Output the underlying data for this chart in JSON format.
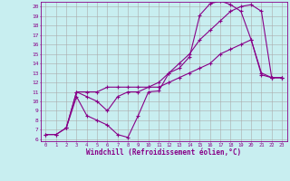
{
  "background_color": "#c8eef0",
  "grid_color": "#aaaaaa",
  "line_color": "#880088",
  "xlabel": "Windchill (Refroidissement éolien,°C)",
  "xlim": [
    -0.5,
    23.5
  ],
  "ylim": [
    5.8,
    20.5
  ],
  "xticks": [
    0,
    1,
    2,
    3,
    4,
    5,
    6,
    7,
    8,
    9,
    10,
    11,
    12,
    13,
    14,
    15,
    16,
    17,
    18,
    19,
    20,
    21,
    22,
    23
  ],
  "yticks": [
    6,
    7,
    8,
    9,
    10,
    11,
    12,
    13,
    14,
    15,
    16,
    17,
    18,
    19,
    20
  ],
  "line1_x": [
    0,
    1,
    2,
    3,
    4,
    5,
    6,
    7,
    8,
    9,
    10,
    11,
    12,
    13,
    14,
    15,
    16,
    17,
    18,
    19,
    20,
    21,
    22,
    23
  ],
  "line1_y": [
    6.5,
    6.5,
    7.2,
    10.5,
    8.5,
    8.0,
    7.5,
    6.5,
    6.2,
    8.5,
    11.0,
    11.1,
    13.0,
    13.5,
    14.7,
    19.1,
    20.3,
    20.6,
    20.2,
    19.5,
    16.5,
    12.8,
    12.5,
    12.5
  ],
  "line2_x": [
    0,
    1,
    2,
    3,
    4,
    5,
    6,
    7,
    8,
    9,
    10,
    11,
    12,
    13,
    14,
    15,
    16,
    17,
    18,
    19,
    20,
    21,
    22,
    23
  ],
  "line2_y": [
    6.5,
    6.5,
    7.2,
    11.0,
    10.5,
    10.0,
    9.0,
    10.5,
    11.0,
    11.0,
    11.5,
    11.5,
    12.0,
    12.5,
    13.0,
    13.5,
    14.0,
    15.0,
    15.5,
    16.0,
    16.5,
    13.0,
    12.5,
    12.5
  ],
  "line3_x": [
    2,
    3,
    4,
    5,
    6,
    7,
    8,
    9,
    10,
    11,
    12,
    13,
    14,
    15,
    16,
    17,
    18,
    19,
    20,
    21,
    22,
    23
  ],
  "line3_y": [
    7.2,
    11.0,
    11.0,
    11.0,
    11.5,
    11.5,
    11.5,
    11.5,
    11.5,
    12.0,
    13.0,
    14.0,
    15.0,
    16.5,
    17.5,
    18.5,
    19.5,
    20.0,
    20.2,
    19.5,
    12.5,
    12.5
  ]
}
